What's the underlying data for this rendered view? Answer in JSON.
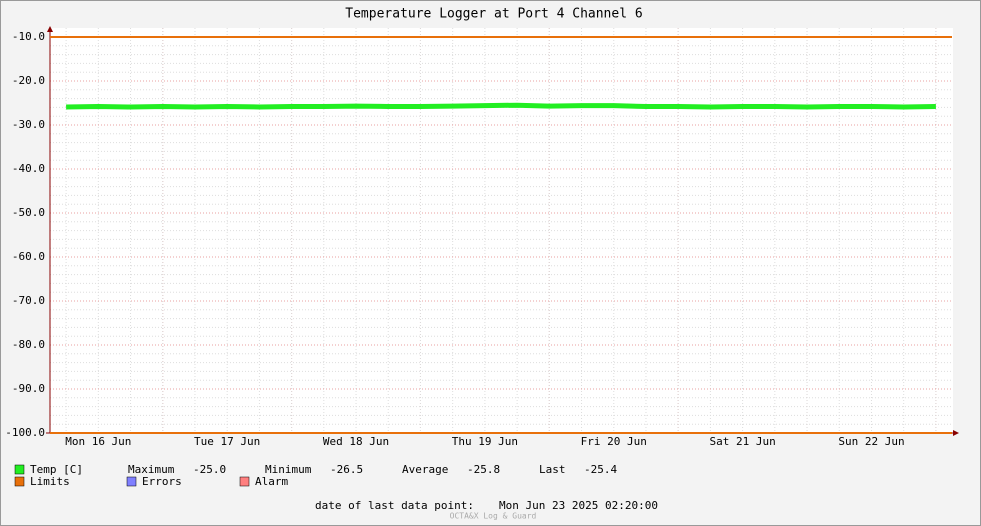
{
  "chart_data": {
    "type": "line",
    "title": "Temperature Logger at Port 4 Channel 6",
    "categories": [
      null,
      "Mon 16 Jun",
      null,
      null,
      null,
      "Tue 17 Jun",
      null,
      null,
      null,
      "Wed 18 Jun",
      null,
      null,
      null,
      "Thu 19 Jun",
      null,
      null,
      null,
      "Fri 20 Jun",
      null,
      null,
      null,
      "Sat 21 Jun",
      null,
      null,
      null,
      "Sun 22 Jun",
      null,
      null
    ],
    "series": [
      {
        "name": "Temp [C]",
        "color": "#22ee22",
        "values": [
          -25.9,
          -25.8,
          -25.9,
          -25.8,
          -25.9,
          -25.8,
          -25.9,
          -25.8,
          -25.8,
          -25.7,
          -25.8,
          -25.8,
          -25.7,
          -25.6,
          -25.5,
          -25.7,
          -25.6,
          -25.6,
          -25.8,
          -25.8,
          -25.9,
          -25.8,
          -25.8,
          -25.9,
          -25.8,
          -25.8,
          -25.9,
          -25.8
        ]
      }
    ],
    "reference_lines": [
      {
        "name": "Limits",
        "color": "#e8700a",
        "values": [
          -10,
          -100
        ]
      }
    ],
    "legend_extra": [
      {
        "name": "Errors",
        "color": "#7f7fff"
      },
      {
        "name": "Alarm",
        "color": "#ff7f7f"
      }
    ],
    "stats": [
      {
        "label": "Maximum",
        "value": -25.0,
        "value_label": "-25.0"
      },
      {
        "label": "Minimum",
        "value": -26.5,
        "value_label": "-26.5"
      },
      {
        "label": "Average",
        "value": -25.8,
        "value_label": "-25.8"
      },
      {
        "label": "Last",
        "value": -25.4,
        "value_label": "-25.4"
      }
    ],
    "ylim": [
      -100,
      -10
    ],
    "yticks": [
      {
        "value": -10,
        "label": "-10.0"
      },
      {
        "value": -20,
        "label": "-20.0"
      },
      {
        "value": -30,
        "label": "-30.0"
      },
      {
        "value": -40,
        "label": "-40.0"
      },
      {
        "value": -50,
        "label": "-50.0"
      },
      {
        "value": -60,
        "label": "-60.0"
      },
      {
        "value": -70,
        "label": "-70.0"
      },
      {
        "value": -80,
        "label": "-80.0"
      },
      {
        "value": -90,
        "label": "-90.0"
      },
      {
        "value": -100,
        "label": "-100.0"
      }
    ],
    "grid": true,
    "footer_label": "date of last data point:",
    "footer_value": "Mon Jun 23 2025 02:20:00",
    "watermark": "OCTA&X Log & Guard"
  }
}
